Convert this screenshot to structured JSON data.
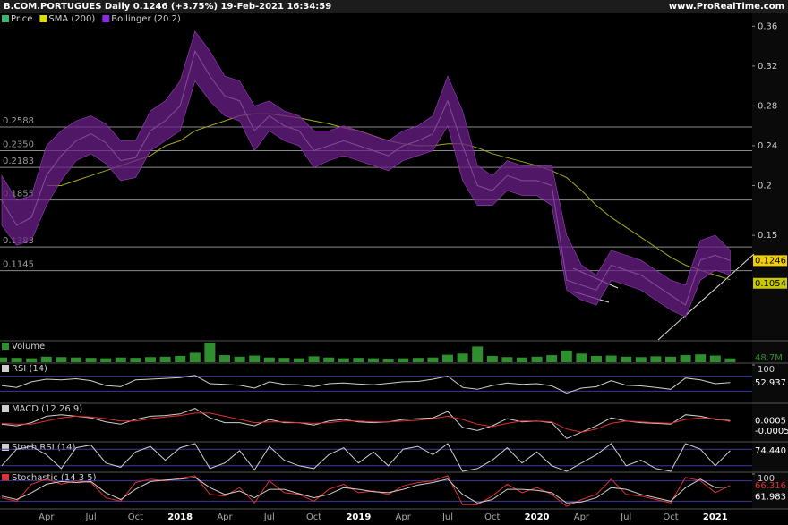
{
  "chart_data": [
    {
      "type": "line",
      "title": "B.COM.PORTUGUES Daily 0.1246 (+3.75%) 19-Feb-2021 16:34:59",
      "source": "www.ProRealTime.com",
      "categories": [
        null,
        null,
        null,
        "Apr",
        null,
        null,
        "Jul",
        null,
        null,
        "Oct",
        null,
        null,
        "2018",
        null,
        null,
        "Apr",
        null,
        null,
        "Jul",
        null,
        null,
        "Oct",
        null,
        null,
        "2019",
        null,
        null,
        "Apr",
        null,
        null,
        "Jul",
        null,
        null,
        "Oct",
        null,
        null,
        "2020",
        null,
        null,
        "Apr",
        null,
        null,
        "Jul",
        null,
        null,
        "Oct",
        null,
        null,
        "2021",
        null
      ],
      "series": [
        {
          "name": "Price",
          "color": "#d0d0d0",
          "values": [
            0.185,
            0.16,
            0.168,
            0.21,
            0.23,
            0.245,
            0.252,
            0.243,
            0.225,
            0.228,
            0.255,
            0.265,
            0.28,
            0.335,
            0.31,
            0.29,
            0.285,
            0.255,
            0.27,
            0.26,
            0.255,
            0.235,
            0.24,
            0.245,
            0.24,
            0.235,
            0.23,
            0.24,
            0.245,
            0.252,
            0.285,
            0.24,
            0.2,
            0.195,
            0.21,
            0.205,
            0.205,
            0.2,
            0.105,
            0.1,
            0.095,
            0.12,
            0.115,
            0.11,
            0.1,
            0.09,
            0.08,
            0.125,
            0.13,
            0.1246
          ]
        },
        {
          "name": "SMA (200)",
          "color": "#a8a820",
          "values": [
            null,
            null,
            null,
            0.2,
            0.2,
            0.205,
            0.21,
            0.215,
            0.22,
            0.225,
            0.23,
            0.24,
            0.245,
            0.255,
            0.26,
            0.265,
            0.27,
            0.272,
            0.272,
            0.27,
            0.268,
            0.265,
            0.262,
            0.258,
            0.255,
            0.25,
            0.245,
            0.242,
            0.24,
            0.24,
            0.242,
            0.242,
            0.238,
            0.232,
            0.228,
            0.224,
            0.22,
            0.215,
            0.208,
            0.195,
            0.18,
            0.168,
            0.158,
            0.148,
            0.138,
            0.128,
            0.12,
            0.115,
            0.11,
            0.1054
          ]
        },
        {
          "name": "Bollinger (20 2)",
          "color": "#6a1f88",
          "upper": [
            0.21,
            0.185,
            0.19,
            0.24,
            0.255,
            0.265,
            0.27,
            0.262,
            0.245,
            0.245,
            0.275,
            0.285,
            0.305,
            0.355,
            0.335,
            0.31,
            0.305,
            0.28,
            0.285,
            0.275,
            0.27,
            0.255,
            0.255,
            0.26,
            0.255,
            0.25,
            0.245,
            0.255,
            0.26,
            0.27,
            0.31,
            0.275,
            0.22,
            0.21,
            0.225,
            0.22,
            0.22,
            0.22,
            0.15,
            0.12,
            0.11,
            0.135,
            0.13,
            0.125,
            0.115,
            0.105,
            0.1,
            0.145,
            0.15,
            0.135
          ],
          "lower": [
            0.16,
            0.14,
            0.145,
            0.18,
            0.205,
            0.225,
            0.232,
            0.222,
            0.205,
            0.208,
            0.235,
            0.245,
            0.255,
            0.305,
            0.285,
            0.27,
            0.265,
            0.235,
            0.255,
            0.245,
            0.24,
            0.218,
            0.225,
            0.23,
            0.225,
            0.22,
            0.215,
            0.225,
            0.23,
            0.235,
            0.26,
            0.205,
            0.18,
            0.18,
            0.195,
            0.19,
            0.19,
            0.18,
            0.095,
            0.085,
            0.08,
            0.105,
            0.1,
            0.095,
            0.085,
            0.075,
            0.068,
            0.105,
            0.115,
            0.11
          ]
        }
      ],
      "ylim": [
        0.045,
        0.372
      ],
      "yticks": [
        0.36,
        0.32,
        0.28,
        0.24,
        0.2,
        0.15
      ],
      "levels": [
        0.2588,
        {
          "value": 0.235,
          "label": "0.2350"
        },
        0.2183,
        0.1855,
        0.1383,
        0.1145
      ]
    },
    {
      "type": "bar",
      "title": "Volume",
      "ylim": [
        0,
        250000000
      ],
      "series": [
        {
          "color": "#2f8f2f",
          "values": [
            60000000,
            55000000,
            50000000,
            70000000,
            65000000,
            60000000,
            55000000,
            50000000,
            60000000,
            55000000,
            65000000,
            70000000,
            80000000,
            120000000,
            250000000,
            90000000,
            70000000,
            85000000,
            60000000,
            55000000,
            50000000,
            75000000,
            60000000,
            50000000,
            55000000,
            50000000,
            45000000,
            50000000,
            55000000,
            60000000,
            95000000,
            110000000,
            200000000,
            80000000,
            65000000,
            60000000,
            70000000,
            90000000,
            150000000,
            110000000,
            80000000,
            85000000,
            70000000,
            65000000,
            75000000,
            70000000,
            90000000,
            100000000,
            85000000,
            48700000
          ],
          "value_labels": [
            null,
            null,
            null,
            null,
            null,
            null,
            null,
            null,
            null,
            null,
            null,
            null,
            null,
            null,
            null,
            null,
            null,
            null,
            null,
            null,
            null,
            null,
            null,
            null,
            null,
            null,
            null,
            null,
            null,
            null,
            null,
            null,
            null,
            null,
            null,
            null,
            null,
            null,
            null,
            null,
            null,
            null,
            null,
            null,
            null,
            null,
            null,
            null,
            null,
            "48.7M"
          ]
        }
      ]
    },
    {
      "type": "line",
      "title": "RSI (14)",
      "ylim": [
        0,
        100
      ],
      "yticks": [
        100
      ],
      "levels": [
        70,
        30
      ],
      "series": [
        {
          "color": "#d0d0d0",
          "values": [
            45,
            40,
            55,
            62,
            60,
            63,
            58,
            45,
            42,
            60,
            62,
            64,
            66,
            72,
            50,
            48,
            46,
            38,
            55,
            48,
            47,
            42,
            50,
            52,
            49,
            47,
            51,
            55,
            56,
            62,
            70,
            40,
            35,
            45,
            52,
            48,
            50,
            44,
            25,
            38,
            42,
            58,
            46,
            44,
            40,
            35,
            65,
            60,
            50,
            52.937
          ]
        }
      ]
    },
    {
      "type": "line",
      "title": "MACD (12 26 9)",
      "ylim": [
        -0.025,
        0.02
      ],
      "series": [
        {
          "color": "#d0d0d0",
          "values": [
            -0.004,
            -0.006,
            -0.002,
            0.006,
            0.008,
            0.006,
            0.004,
            -0.001,
            -0.004,
            0.002,
            0.006,
            0.007,
            0.009,
            0.016,
            0.004,
            -0.002,
            -0.002,
            -0.006,
            0.002,
            -0.002,
            -0.002,
            -0.005,
            0,
            0.002,
            -0.001,
            -0.002,
            -0.001,
            0.002,
            0.003,
            0.004,
            0.012,
            -0.008,
            -0.012,
            -0.006,
            0.003,
            -0.001,
            0,
            -0.002,
            -0.022,
            -0.014,
            -0.006,
            0.004,
            0,
            -0.002,
            -0.003,
            -0.004,
            0.008,
            0.006,
            0.002,
            0.0005
          ]
        },
        {
          "color": "#e03030",
          "values": [
            -0.003,
            -0.004,
            -0.004,
            0,
            0.004,
            0.006,
            0.005,
            0.003,
            0,
            0,
            0.003,
            0.005,
            0.007,
            0.01,
            0.01,
            0.006,
            0.002,
            -0.002,
            -0.001,
            -0.001,
            -0.002,
            -0.003,
            -0.002,
            0,
            0,
            -0.001,
            -0.001,
            0,
            0.001,
            0.003,
            0.006,
            0.002,
            -0.004,
            -0.007,
            -0.003,
            0,
            0,
            -0.001,
            -0.01,
            -0.014,
            -0.01,
            -0.003,
            0,
            -0.001,
            -0.002,
            -0.003,
            0.002,
            0.004,
            0.003,
            -0.0005
          ]
        }
      ]
    },
    {
      "type": "line",
      "title": "Stoch RSI (14)",
      "ylim": [
        0,
        100
      ],
      "levels": [
        80,
        20
      ],
      "series": [
        {
          "color": "#d0d0d0",
          "values": [
            20,
            80,
            90,
            60,
            10,
            85,
            95,
            30,
            15,
            70,
            90,
            40,
            85,
            100,
            10,
            30,
            75,
            5,
            90,
            40,
            20,
            10,
            60,
            85,
            30,
            70,
            20,
            80,
            90,
            60,
            100,
            0,
            10,
            40,
            85,
            30,
            70,
            20,
            0,
            30,
            60,
            100,
            20,
            40,
            10,
            0,
            100,
            80,
            20,
            74.44
          ],
          "value_labels": [
            null,
            null,
            null,
            null,
            null,
            null,
            null,
            null,
            null,
            null,
            null,
            null,
            null,
            null,
            null,
            null,
            null,
            null,
            null,
            null,
            null,
            null,
            null,
            null,
            null,
            null,
            null,
            null,
            null,
            null,
            null,
            null,
            null,
            null,
            null,
            null,
            null,
            null,
            null,
            null,
            null,
            null,
            null,
            null,
            null,
            null,
            null,
            null,
            null,
            "74.440"
          ]
        }
      ]
    },
    {
      "type": "line",
      "title": "Stochastic (14 3 5)",
      "ylim": [
        0,
        100
      ],
      "yticks": [
        100
      ],
      "levels": [
        80,
        20
      ],
      "series": [
        {
          "color": "#e03030",
          "values": [
            30,
            20,
            70,
            85,
            70,
            80,
            75,
            30,
            20,
            75,
            85,
            80,
            88,
            95,
            40,
            35,
            60,
            15,
            80,
            45,
            40,
            20,
            55,
            70,
            45,
            50,
            40,
            65,
            75,
            80,
            95,
            10,
            10,
            35,
            70,
            45,
            60,
            40,
            5,
            25,
            40,
            85,
            40,
            35,
            25,
            15,
            90,
            80,
            45,
            66.316
          ]
        },
        {
          "color": "#d0d0d0",
          "values": [
            35,
            25,
            45,
            70,
            78,
            75,
            78,
            45,
            25,
            55,
            78,
            82,
            85,
            90,
            60,
            40,
            50,
            30,
            55,
            55,
            42,
            30,
            40,
            60,
            55,
            48,
            45,
            55,
            68,
            75,
            85,
            40,
            15,
            25,
            55,
            55,
            52,
            45,
            15,
            18,
            30,
            60,
            55,
            40,
            30,
            20,
            60,
            85,
            60,
            61.983
          ]
        }
      ]
    }
  ]
}
